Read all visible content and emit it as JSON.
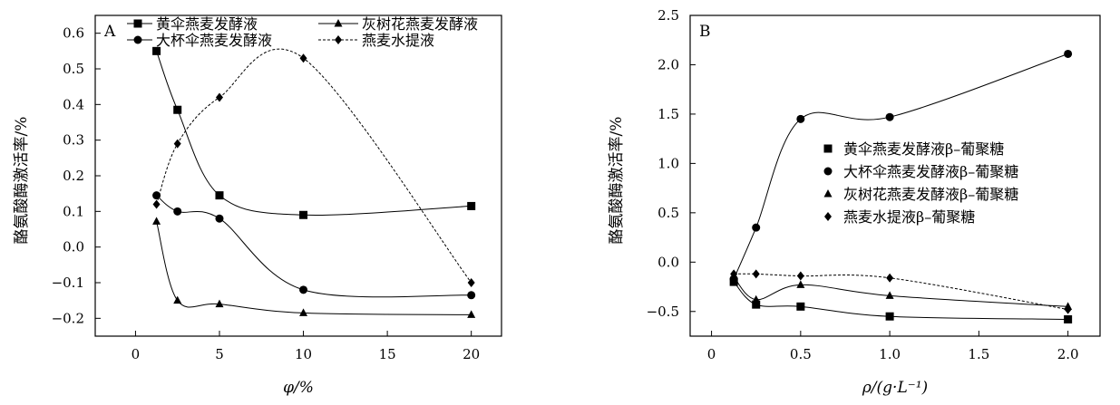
{
  "chart_data": [
    {
      "type": "line",
      "panel_label": "A",
      "xlabel": "φ/%",
      "ylabel": "酪氨酸酶激活率/%",
      "xlim": [
        -2.4,
        21.8
      ],
      "ylim": [
        -0.25,
        0.65
      ],
      "x_ticks": [
        0,
        5,
        10,
        15,
        20
      ],
      "x_tick_labels": [
        "0",
        "5",
        "10",
        "15",
        "20"
      ],
      "y_ticks": [
        -0.2,
        -0.1,
        0.0,
        0.1,
        0.2,
        0.3,
        0.4,
        0.5,
        0.6
      ],
      "y_tick_labels": [
        "−0.2",
        "−0.1",
        "0.0",
        "0.1",
        "0.2",
        "0.3",
        "0.4",
        "0.5",
        "0.6"
      ],
      "grid": false,
      "legend_position": "top",
      "series": [
        {
          "name": "黄伞燕麦发酵液",
          "marker": "square",
          "dashed": false,
          "x": [
            1.25,
            2.5,
            5,
            10,
            20
          ],
          "y": [
            0.55,
            0.385,
            0.145,
            0.09,
            0.115
          ]
        },
        {
          "name": "大杯伞燕麦发酵液",
          "marker": "circle",
          "dashed": false,
          "x": [
            1.25,
            2.5,
            5,
            10,
            20
          ],
          "y": [
            0.145,
            0.1,
            0.08,
            -0.12,
            -0.135
          ]
        },
        {
          "name": "灰树花燕麦发酵液",
          "marker": "triangle",
          "dashed": false,
          "x": [
            1.25,
            2.5,
            5,
            10,
            20
          ],
          "y": [
            0.072,
            -0.15,
            -0.16,
            -0.185,
            -0.19
          ]
        },
        {
          "name": "燕麦水提液",
          "marker": "diamond",
          "dashed": true,
          "x": [
            1.25,
            2.5,
            5,
            10,
            20
          ],
          "y": [
            0.12,
            0.29,
            0.42,
            0.53,
            -0.1
          ]
        }
      ]
    },
    {
      "type": "line",
      "panel_label": "B",
      "xlabel": "ρ/(g·L⁻¹)",
      "ylabel": "酪氨酸酶激活率/%",
      "xlim": [
        -0.12,
        2.18
      ],
      "ylim": [
        -0.75,
        2.5
      ],
      "x_ticks": [
        0,
        0.5,
        1.0,
        1.5,
        2.0
      ],
      "x_tick_labels": [
        "0",
        "0.5",
        "1.0",
        "1.5",
        "2.0"
      ],
      "y_ticks": [
        -0.5,
        0.0,
        0.5,
        1.0,
        1.5,
        2.0,
        2.5
      ],
      "y_tick_labels": [
        "−0.5",
        "0.0",
        "0.5",
        "1.0",
        "1.5",
        "2.0",
        "2.5"
      ],
      "grid": false,
      "legend_position": "right",
      "series": [
        {
          "name": "黄伞燕麦发酵液β–葡聚糖",
          "marker": "square",
          "dashed": false,
          "x": [
            0.125,
            0.25,
            0.5,
            1.0,
            2.0
          ],
          "y": [
            -0.2,
            -0.43,
            -0.45,
            -0.55,
            -0.58
          ]
        },
        {
          "name": "大杯伞燕麦发酵液β–葡聚糖",
          "marker": "circle",
          "dashed": false,
          "x": [
            0.125,
            0.25,
            0.5,
            1.0,
            2.0
          ],
          "y": [
            -0.17,
            0.35,
            1.45,
            1.47,
            2.11
          ]
        },
        {
          "name": "灰树花燕麦发酵液β–葡聚糖",
          "marker": "triangle",
          "dashed": false,
          "x": [
            0.125,
            0.25,
            0.5,
            1.0,
            2.0
          ],
          "y": [
            -0.15,
            -0.38,
            -0.23,
            -0.34,
            -0.45
          ]
        },
        {
          "name": "燕麦水提液β–葡聚糖",
          "marker": "diamond",
          "dashed": true,
          "x": [
            0.125,
            0.25,
            0.5,
            1.0,
            2.0
          ],
          "y": [
            -0.12,
            -0.12,
            -0.14,
            -0.16,
            -0.48
          ]
        }
      ]
    }
  ]
}
